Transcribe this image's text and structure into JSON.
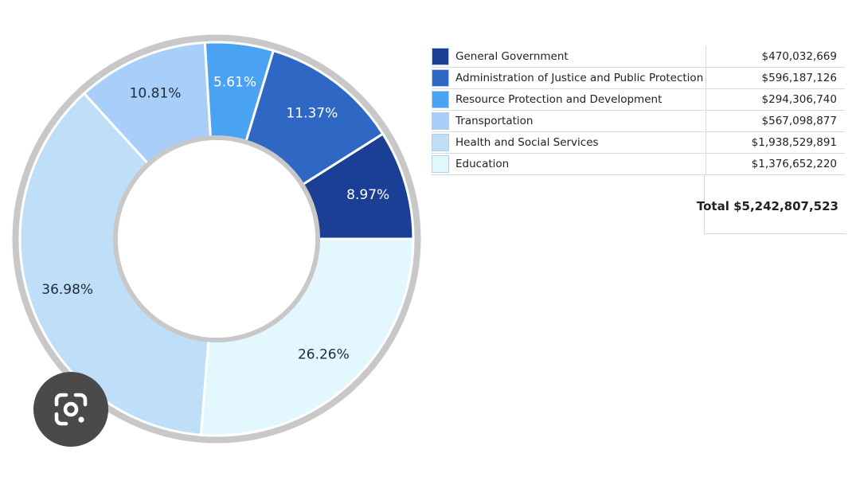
{
  "chart_data": {
    "type": "pie",
    "style": "donut",
    "slices": [
      {
        "name": "General Government",
        "amount": "$470,032,669",
        "value": 8.97,
        "label": "8.97%",
        "color": "#1b3f94",
        "label_color": "#ffffff"
      },
      {
        "name": "Administration of Justice and Public Protection",
        "amount": "$596,187,126",
        "value": 11.37,
        "label": "11.37%",
        "color": "#2e67c4",
        "label_color": "#ffffff"
      },
      {
        "name": "Resource Protection and Development",
        "amount": "$294,306,740",
        "value": 5.61,
        "label": "5.61%",
        "color": "#4aa2f3",
        "label_color": "#ffffff"
      },
      {
        "name": "Transportation",
        "amount": "$567,098,877",
        "value": 10.81,
        "label": "10.81%",
        "color": "#a8cff9",
        "label_color": "#1f2a3a"
      },
      {
        "name": "Health and Social Services",
        "amount": "$1,938,529,891",
        "value": 36.98,
        "label": "36.98%",
        "color": "#bfdff9",
        "label_color": "#1f2a3a"
      },
      {
        "name": "Education",
        "amount": "$1,376,652,220",
        "value": 26.26,
        "label": "26.26%",
        "color": "#e3f8fe",
        "label_color": "#1f2a3a"
      }
    ],
    "legend_position": "right",
    "total_label": "Total $5,242,807,523",
    "ring_color": "#c8c8c8"
  },
  "lens_button": {
    "icon": "google-lens-icon",
    "background": "#4a4a4a"
  }
}
